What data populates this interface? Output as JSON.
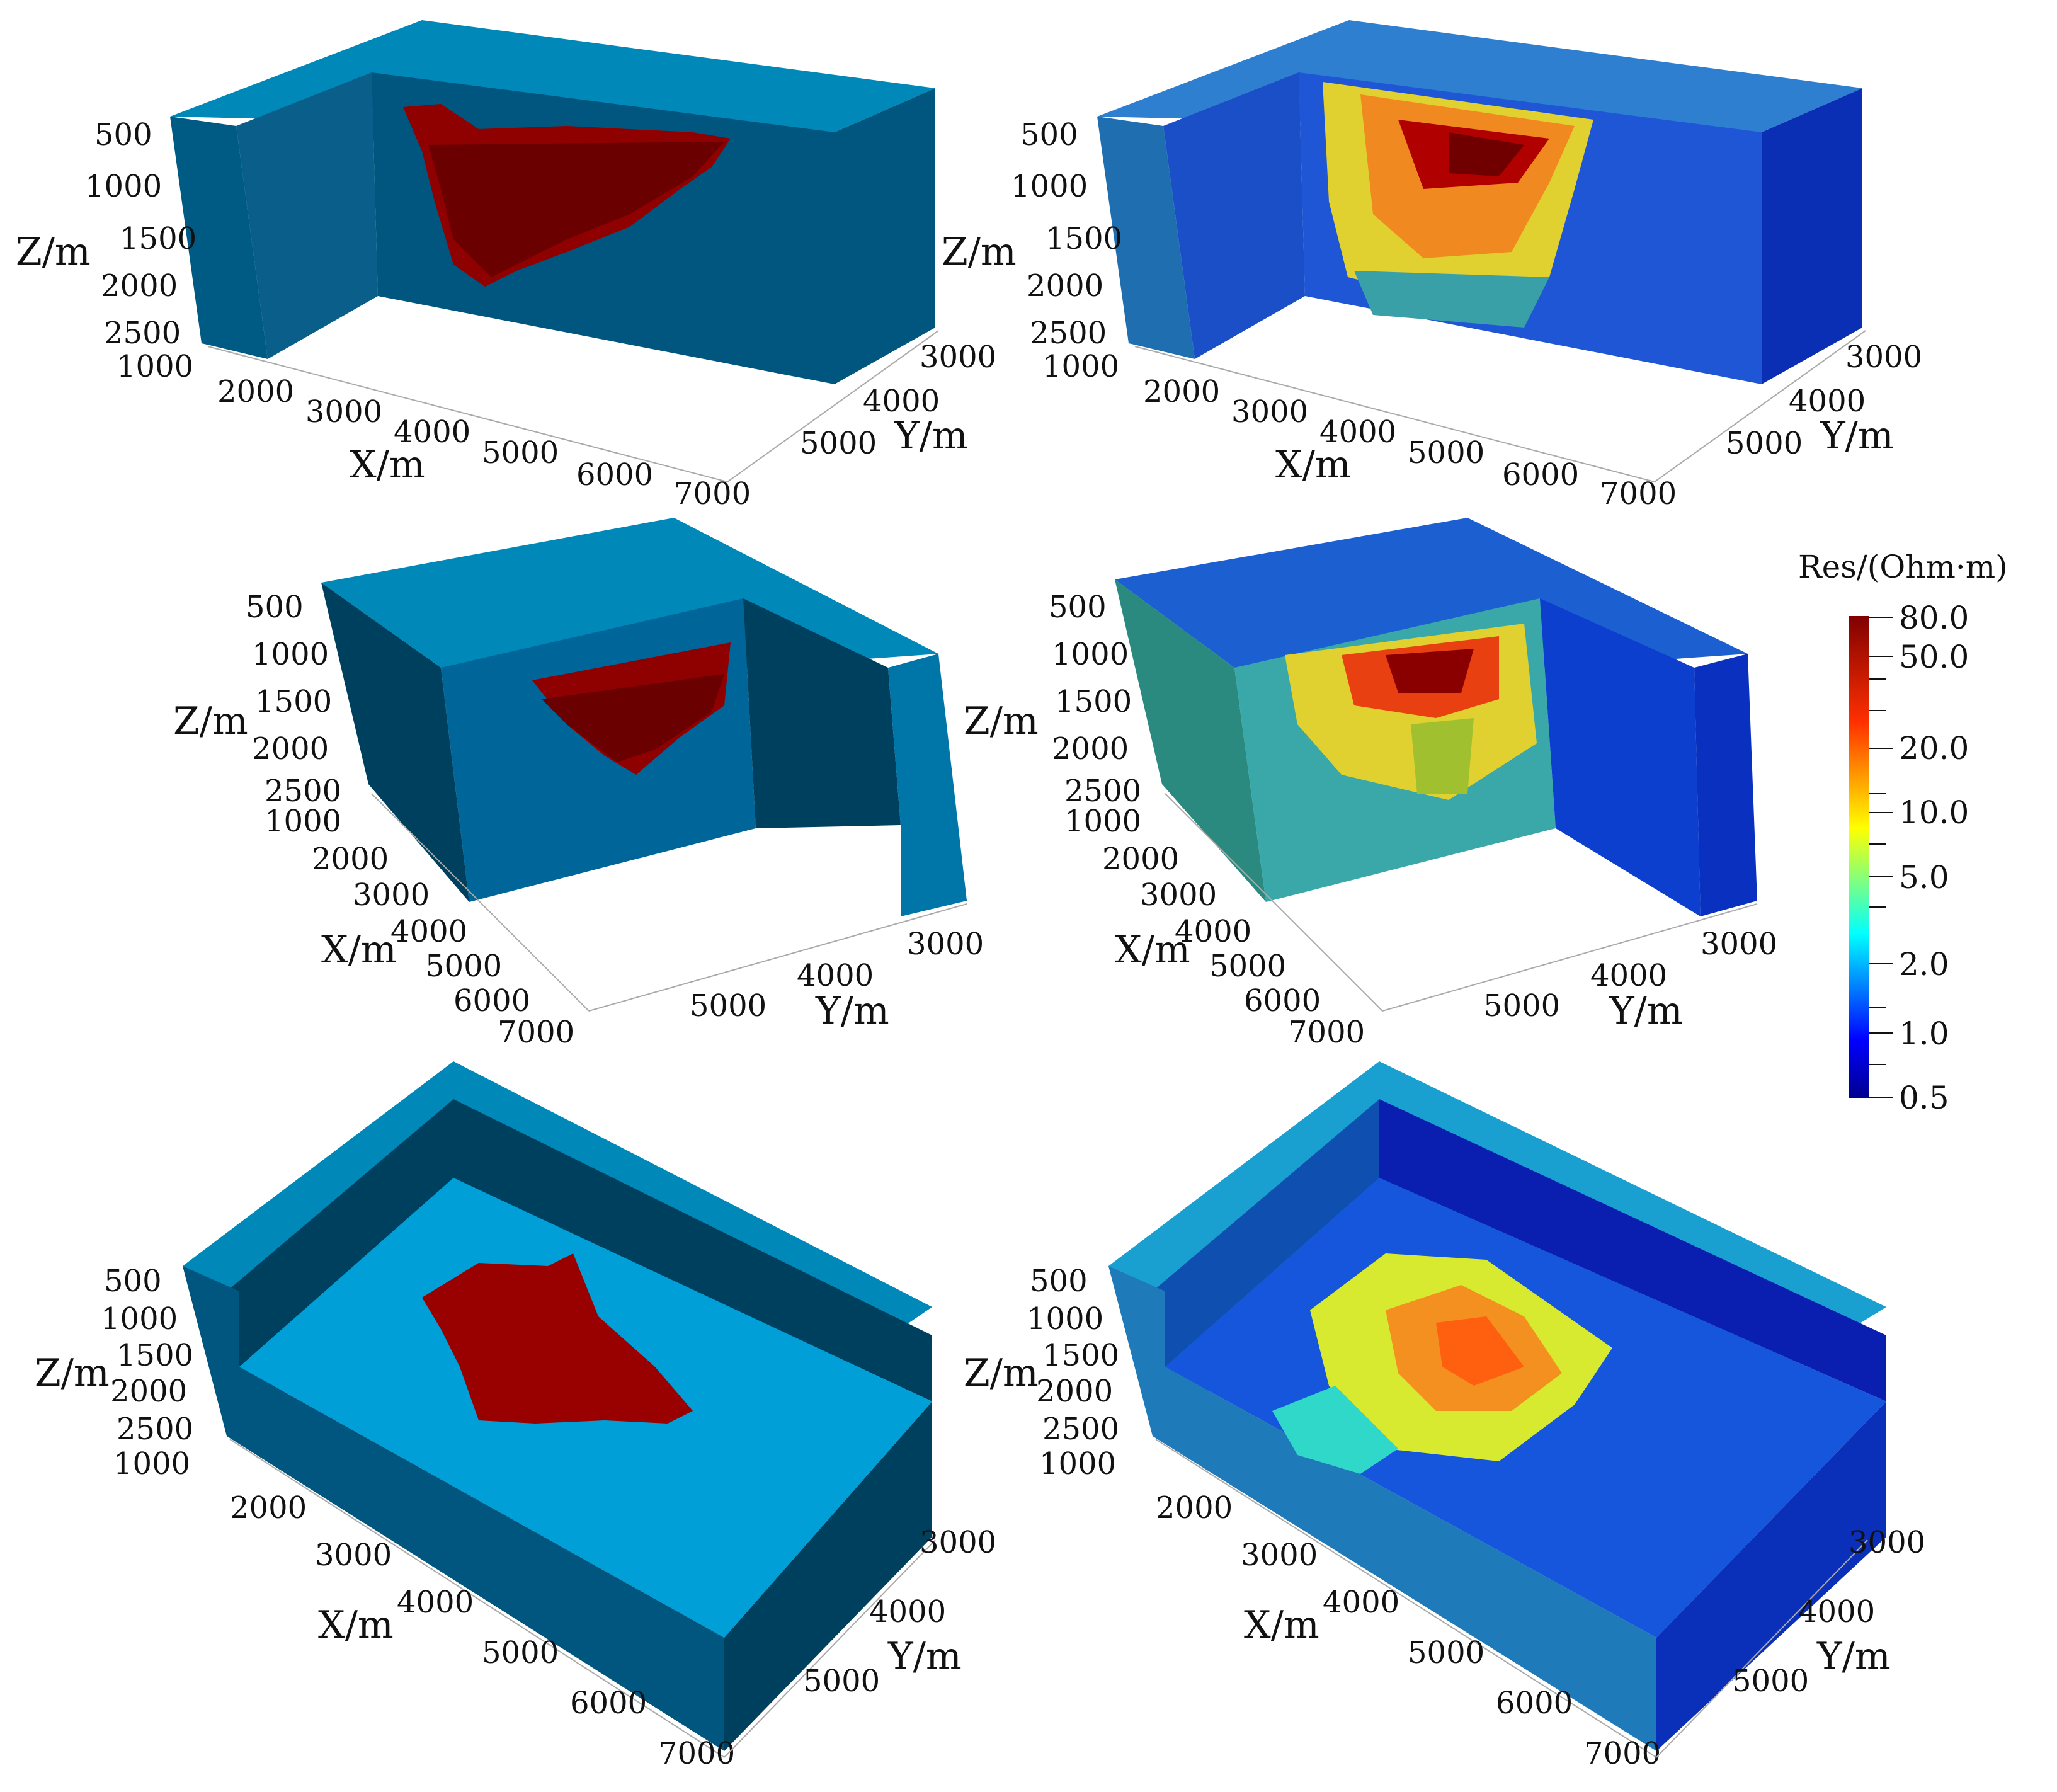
{
  "figure": {
    "panels": [
      {
        "id": "r1c1",
        "kind": "model",
        "z_ticks": [
          "500",
          "1000",
          "1500",
          "2000",
          "2500"
        ],
        "x_ticks": [
          "1000",
          "2000",
          "3000",
          "4000",
          "5000",
          "6000",
          "7000"
        ],
        "y_ticks": [
          "3000",
          "4000",
          "5000"
        ],
        "z_label": "Z/m",
        "x_label": "X/m",
        "y_label": "Y/m"
      },
      {
        "id": "r1c2",
        "kind": "inversion",
        "z_ticks": [
          "500",
          "1000",
          "1500",
          "2000",
          "2500"
        ],
        "x_ticks": [
          "1000",
          "2000",
          "3000",
          "4000",
          "5000",
          "6000",
          "7000"
        ],
        "y_ticks": [
          "3000",
          "4000",
          "5000"
        ],
        "z_label": "Z/m",
        "x_label": "X/m",
        "y_label": "Y/m"
      },
      {
        "id": "r2c1",
        "kind": "model",
        "z_ticks": [
          "500",
          "1000",
          "1500",
          "2000",
          "2500"
        ],
        "x_ticks": [
          "1000",
          "2000",
          "3000",
          "4000",
          "5000",
          "6000",
          "7000"
        ],
        "y_ticks": [
          "3000",
          "4000",
          "5000"
        ],
        "z_label": "Z/m",
        "x_label": "X/m",
        "y_label": "Y/m"
      },
      {
        "id": "r2c2",
        "kind": "inversion",
        "z_ticks": [
          "500",
          "1000",
          "1500",
          "2000",
          "2500"
        ],
        "x_ticks": [
          "1000",
          "2000",
          "3000",
          "4000",
          "5000",
          "6000",
          "7000"
        ],
        "y_ticks": [
          "3000",
          "4000",
          "5000"
        ],
        "z_label": "Z/m",
        "x_label": "X/m",
        "y_label": "Y/m"
      },
      {
        "id": "r3c1",
        "kind": "model",
        "z_ticks": [
          "500",
          "1000",
          "1500",
          "2000",
          "2500"
        ],
        "x_ticks": [
          "1000",
          "2000",
          "3000",
          "4000",
          "5000",
          "6000",
          "7000"
        ],
        "y_ticks": [
          "3000",
          "4000",
          "5000"
        ],
        "z_label": "Z/m",
        "x_label": "X/m",
        "y_label": "Y/m"
      },
      {
        "id": "r3c2",
        "kind": "inversion",
        "z_ticks": [
          "500",
          "1000",
          "1500",
          "2000",
          "2500"
        ],
        "x_ticks": [
          "1000",
          "2000",
          "3000",
          "4000",
          "5000",
          "6000",
          "7000"
        ],
        "y_ticks": [
          "3000",
          "4000",
          "5000"
        ],
        "z_label": "Z/m",
        "x_label": "X/m",
        "y_label": "Y/m"
      }
    ],
    "colorbar": {
      "title": "Res/(Ohm·m)",
      "ticks": [
        "80.0",
        "50.0",
        "20.0",
        "10.0",
        "5.0",
        "2.0",
        "1.0",
        "0.5"
      ],
      "colormap": "jet",
      "scale": "log"
    },
    "colors": {
      "model_background_top": "#0089b8",
      "model_background_side": "#00567e",
      "model_background_dark": "#00405f",
      "model_anomaly": "#8f0000",
      "model_anomaly_dark": "#5c0000"
    }
  }
}
